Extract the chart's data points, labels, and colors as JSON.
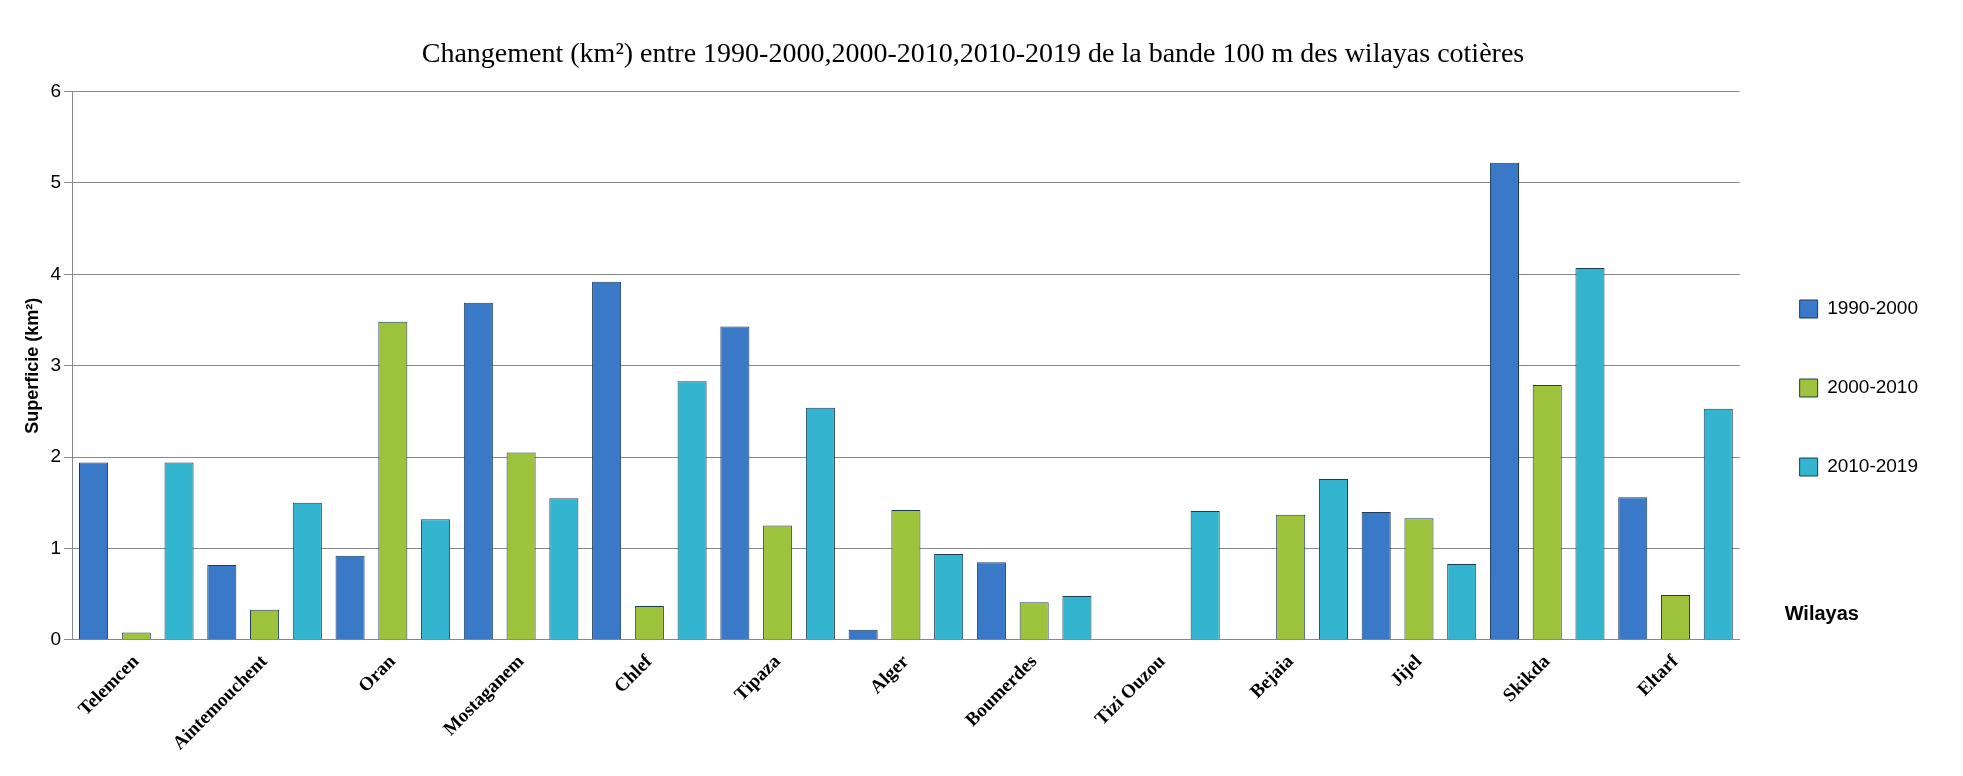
{
  "chart_data": {
    "type": "bar",
    "title": "Changement (km²) entre 1990-2000,2000-2010,2010-2019 de la bande 100 m des wilayas cotières",
    "xlabel": "Wilayas",
    "ylabel": "Superficie (km²)",
    "categories": [
      "Telemcen",
      "Aintemouchent",
      "Oran",
      "Mostaganem",
      "Chlef",
      "Tipaza",
      "Alger",
      "Boumerdes",
      "Tizi Ouzou",
      "Bejaia",
      "Jijel",
      "Skikda",
      "Eltarf"
    ],
    "series": [
      {
        "name": "1990-2000",
        "color": "#3a78c8",
        "values": [
          1.94,
          0.82,
          0.92,
          3.69,
          3.92,
          3.43,
          0.11,
          0.85,
          null,
          null,
          1.4,
          5.22,
          1.56
        ]
      },
      {
        "name": "2000-2010",
        "color": "#9dc23c",
        "values": [
          0.08,
          0.33,
          3.48,
          2.05,
          0.37,
          1.25,
          1.42,
          0.41,
          null,
          1.37,
          1.33,
          2.79,
          0.49
        ]
      },
      {
        "name": "2010-2019",
        "color": "#33b5d0",
        "values": [
          1.94,
          1.5,
          1.32,
          1.55,
          2.83,
          2.54,
          0.94,
          0.48,
          1.41,
          1.76,
          0.83,
          4.07,
          2.53
        ]
      }
    ],
    "ylim": [
      0,
      6
    ],
    "yticks": [
      0,
      1,
      2,
      3,
      4,
      5,
      6
    ],
    "grid": "y",
    "legend": "right"
  }
}
